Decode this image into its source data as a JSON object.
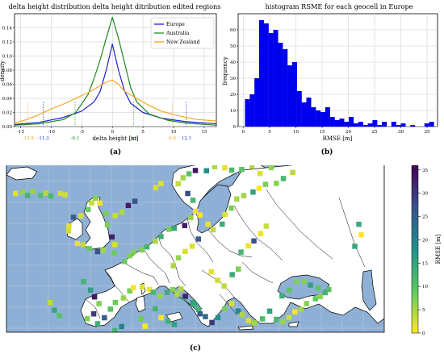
{
  "panels": {
    "a_label": "(a)",
    "b_label": "(b)",
    "c_label": "(c)"
  },
  "chart_data": [
    {
      "type": "line",
      "title": "delta height distribution delta height ditribution edited regions",
      "xlabel": "delta height [m]",
      "ylabel": "density",
      "xlim": [
        -16,
        17
      ],
      "ylim": [
        0,
        0.16
      ],
      "grid": true,
      "legend_position": "top-right",
      "xticks": [
        -15,
        -10,
        -5,
        0,
        5,
        10,
        15
      ],
      "yticks": [
        0.0,
        0.02,
        0.04,
        0.06,
        0.08,
        0.1,
        0.12,
        0.14
      ],
      "series": [
        {
          "name": "Europe",
          "color": "#1f1fd6",
          "x": [
            -16,
            -12,
            -8,
            -5,
            -3,
            -2,
            -1,
            0,
            1,
            2,
            3,
            5,
            8,
            12,
            17
          ],
          "y": [
            0.003,
            0.006,
            0.013,
            0.022,
            0.035,
            0.05,
            0.08,
            0.117,
            0.08,
            0.05,
            0.033,
            0.02,
            0.012,
            0.007,
            0.004
          ]
        },
        {
          "name": "Australia",
          "color": "#1e8a1e",
          "x": [
            -16,
            -12,
            -8,
            -6,
            -4,
            -3,
            -2,
            -1,
            0,
            1,
            2,
            3,
            4,
            6,
            9,
            12,
            17
          ],
          "y": [
            0.002,
            0.004,
            0.01,
            0.02,
            0.045,
            0.068,
            0.095,
            0.125,
            0.155,
            0.125,
            0.09,
            0.055,
            0.035,
            0.018,
            0.009,
            0.005,
            0.002
          ]
        },
        {
          "name": "New Zealand",
          "color": "#f5a623",
          "x": [
            -16,
            -14,
            -12,
            -10,
            -8,
            -6,
            -4,
            -2,
            -1,
            0,
            1,
            2,
            4,
            6,
            8,
            10,
            12,
            14,
            17
          ],
          "y": [
            0.005,
            0.01,
            0.017,
            0.025,
            0.032,
            0.04,
            0.048,
            0.058,
            0.063,
            0.066,
            0.06,
            0.05,
            0.04,
            0.03,
            0.022,
            0.017,
            0.013,
            0.01,
            0.008
          ]
        }
      ],
      "markers": [
        {
          "x": -13.8,
          "label": "-13.8",
          "color": "#f5a623"
        },
        {
          "x": -11.3,
          "label": "-11.3",
          "color": "#1f1fd6"
        },
        {
          "x": -6.1,
          "label": "-6.1",
          "color": "#1e8a1e"
        },
        {
          "x": 3.5,
          "label": "3.5",
          "color": "#1e8a1e"
        },
        {
          "x": 9.8,
          "label": "9.8",
          "color": "#f5a623"
        },
        {
          "x": 12.1,
          "label": "12.1",
          "color": "#1f1fd6"
        }
      ]
    },
    {
      "type": "bar",
      "title": "histogram RSME for each geocell in Europe",
      "xlabel": "RMSE [m]",
      "ylabel": "frequency",
      "xlim": [
        -1,
        37
      ],
      "ylim": [
        0,
        70
      ],
      "grid": true,
      "color": "#0000ee",
      "xticks": [
        0,
        5,
        10,
        15,
        20,
        25,
        30,
        35
      ],
      "yticks": [
        0,
        10,
        20,
        30,
        40,
        50,
        60
      ],
      "bin_width": 0.9,
      "bin_starts": [
        0.3,
        1.2,
        2.1,
        3.0,
        3.9,
        4.8,
        5.7,
        6.6,
        7.5,
        8.4,
        9.3,
        10.2,
        11.1,
        12.0,
        12.9,
        13.8,
        14.7,
        15.6,
        16.5,
        17.4,
        18.3,
        19.2,
        20.1,
        21.0,
        21.9,
        22.8,
        23.7,
        24.6,
        25.5,
        26.4,
        27.3,
        28.2,
        29.1,
        30.0,
        30.9,
        31.8,
        32.7,
        33.6,
        34.5,
        35.4
      ],
      "values": [
        17,
        20,
        30,
        66,
        64,
        58,
        60,
        52,
        48,
        38,
        40,
        22,
        15,
        18,
        12,
        10,
        9,
        12,
        6,
        4,
        5,
        3,
        6,
        2,
        3,
        1,
        2,
        4,
        1,
        3,
        0,
        3,
        1,
        2,
        0,
        1,
        0,
        0,
        2,
        3
      ]
    },
    {
      "type": "heatmap",
      "colorbar_label": "RMSE [m]",
      "colorbar_range": [
        0,
        36
      ],
      "colorbar_ticks": [
        0,
        5,
        10,
        15,
        20,
        25,
        30,
        35
      ],
      "colormap": "viridis_r",
      "map_colors": {
        "sea": "#8fb0d6",
        "land": "#ffffff"
      }
    }
  ]
}
